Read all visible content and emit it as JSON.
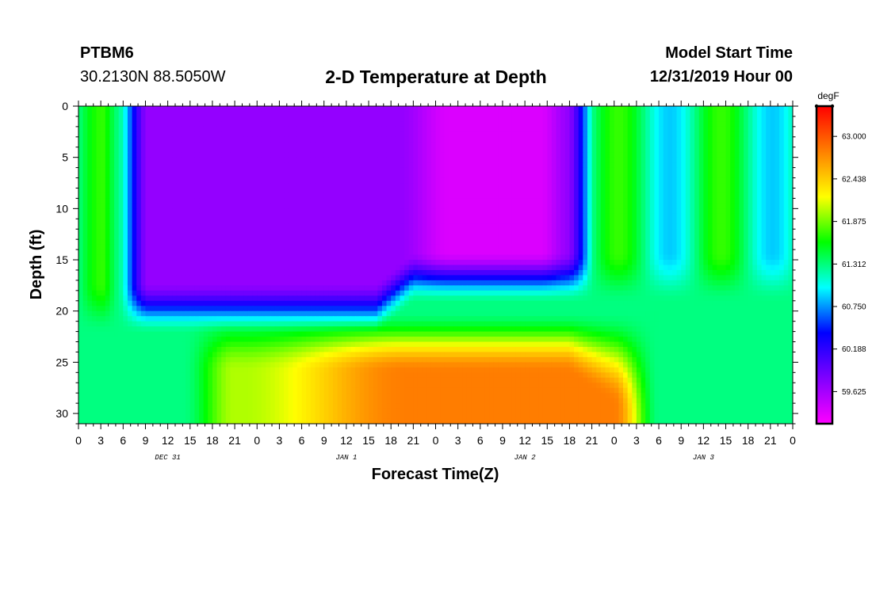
{
  "header": {
    "station": "PTBM6",
    "coords": "30.2130N 88.5050W",
    "title": "2-D Temperature at Depth",
    "model_start_label": "Model Start Time",
    "model_start_value": "12/31/2019 Hour 00"
  },
  "chart_data": {
    "type": "heatmap",
    "title": "2-D Temperature at Depth",
    "xlabel": "Forecast Time(Z)",
    "ylabel": "Depth (ft)",
    "x_ticks": [
      "0",
      "3",
      "6",
      "9",
      "12",
      "15",
      "18",
      "21",
      "0",
      "3",
      "6",
      "9",
      "12",
      "15",
      "18",
      "21",
      "0",
      "3",
      "6",
      "9",
      "12",
      "15",
      "18",
      "21",
      "0",
      "3",
      "6",
      "9",
      "12",
      "15",
      "18",
      "21",
      "0"
    ],
    "x_hours": [
      0,
      3,
      6,
      9,
      12,
      15,
      18,
      21,
      24,
      27,
      30,
      33,
      36,
      39,
      42,
      45,
      48,
      51,
      54,
      57,
      60,
      63,
      66,
      69,
      72,
      75,
      78,
      81,
      84,
      87,
      90,
      93,
      96
    ],
    "date_labels": [
      {
        "label": "DEC 31",
        "hour": 12
      },
      {
        "label": "JAN 1",
        "hour": 36
      },
      {
        "label": "JAN 2",
        "hour": 60
      },
      {
        "label": "JAN 3",
        "hour": 84
      }
    ],
    "xlim": [
      0,
      96
    ],
    "y_ticks": [
      0,
      5,
      10,
      15,
      20,
      25,
      30
    ],
    "ylim": [
      0,
      31
    ],
    "y_inverted": true,
    "colorbar": {
      "units": "degF",
      "labels": [
        "63.000",
        "62.438",
        "61.875",
        "61.312",
        "60.750",
        "60.188",
        "59.625"
      ],
      "min": 59.2,
      "max": 63.4,
      "colors": [
        "#ff00ff",
        "#8000ff",
        "#0000ff",
        "#00ffff",
        "#00ff00",
        "#ffff00",
        "#ff8000",
        "#ff0000"
      ]
    }
  }
}
